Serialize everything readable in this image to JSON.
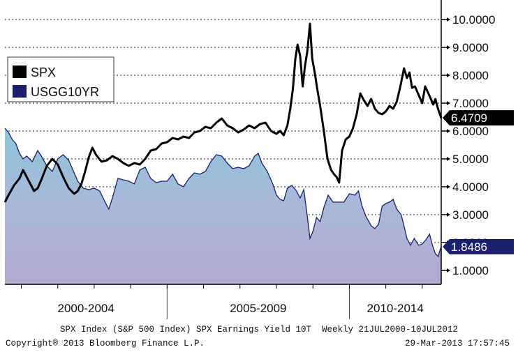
{
  "chart_data": {
    "type": "line",
    "title": "",
    "x_range": [
      2000.55,
      2012.52
    ],
    "ylim": [
      0.5,
      10.5
    ],
    "y_ticks": [
      "10.0000",
      "9.0000",
      "8.0000",
      "7.0000",
      "6.0000",
      "5.0000",
      "4.0000",
      "3.0000",
      "2.0000",
      "1.0000"
    ],
    "y_tick_values": [
      10,
      9,
      8,
      7,
      6,
      5,
      4,
      3,
      2,
      1
    ],
    "x_period_labels": [
      "2000-2004",
      "2005-2009",
      "2010-2014"
    ],
    "grid": true,
    "legend_position": "top-left",
    "series": [
      {
        "name": "SPX",
        "color": "#000000",
        "last_value_label": "6.4709",
        "last_value": 6.4709,
        "points": [
          [
            2000.55,
            3.45
          ],
          [
            2000.65,
            3.7
          ],
          [
            2000.8,
            4.05
          ],
          [
            2000.95,
            4.3
          ],
          [
            2001.05,
            4.6
          ],
          [
            2001.15,
            4.35
          ],
          [
            2001.25,
            4.1
          ],
          [
            2001.35,
            3.85
          ],
          [
            2001.45,
            3.95
          ],
          [
            2001.55,
            4.25
          ],
          [
            2001.7,
            4.75
          ],
          [
            2001.85,
            5.0
          ],
          [
            2002.0,
            4.8
          ],
          [
            2002.15,
            4.35
          ],
          [
            2002.3,
            3.95
          ],
          [
            2002.45,
            3.75
          ],
          [
            2002.55,
            3.85
          ],
          [
            2002.65,
            4.1
          ],
          [
            2002.75,
            4.55
          ],
          [
            2002.85,
            5.05
          ],
          [
            2002.95,
            5.4
          ],
          [
            2003.05,
            5.15
          ],
          [
            2003.2,
            4.9
          ],
          [
            2003.35,
            4.95
          ],
          [
            2003.5,
            5.1
          ],
          [
            2003.65,
            5.0
          ],
          [
            2003.8,
            4.85
          ],
          [
            2003.95,
            4.75
          ],
          [
            2004.1,
            4.85
          ],
          [
            2004.25,
            4.8
          ],
          [
            2004.4,
            5.0
          ],
          [
            2004.55,
            5.3
          ],
          [
            2004.7,
            5.35
          ],
          [
            2004.85,
            5.55
          ],
          [
            2005.0,
            5.6
          ],
          [
            2005.15,
            5.75
          ],
          [
            2005.3,
            5.7
          ],
          [
            2005.45,
            5.8
          ],
          [
            2005.6,
            5.75
          ],
          [
            2005.75,
            5.95
          ],
          [
            2005.9,
            6.0
          ],
          [
            2006.05,
            6.15
          ],
          [
            2006.2,
            6.1
          ],
          [
            2006.35,
            6.3
          ],
          [
            2006.5,
            6.45
          ],
          [
            2006.65,
            6.2
          ],
          [
            2006.8,
            6.1
          ],
          [
            2006.95,
            5.95
          ],
          [
            2007.1,
            6.05
          ],
          [
            2007.25,
            6.2
          ],
          [
            2007.4,
            6.1
          ],
          [
            2007.55,
            6.25
          ],
          [
            2007.7,
            6.3
          ],
          [
            2007.85,
            6.0
          ],
          [
            2008.0,
            5.9
          ],
          [
            2008.1,
            6.0
          ],
          [
            2008.2,
            5.85
          ],
          [
            2008.3,
            6.2
          ],
          [
            2008.38,
            6.8
          ],
          [
            2008.45,
            7.5
          ],
          [
            2008.52,
            8.6
          ],
          [
            2008.58,
            9.1
          ],
          [
            2008.65,
            8.7
          ],
          [
            2008.72,
            7.6
          ],
          [
            2008.78,
            8.3
          ],
          [
            2008.85,
            8.9
          ],
          [
            2008.92,
            9.85
          ],
          [
            2008.98,
            8.6
          ],
          [
            2009.05,
            8.1
          ],
          [
            2009.12,
            7.5
          ],
          [
            2009.2,
            6.9
          ],
          [
            2009.3,
            6.0
          ],
          [
            2009.4,
            5.0
          ],
          [
            2009.5,
            4.6
          ],
          [
            2009.58,
            4.45
          ],
          [
            2009.65,
            4.35
          ],
          [
            2009.72,
            4.15
          ],
          [
            2009.8,
            5.3
          ],
          [
            2009.9,
            5.7
          ],
          [
            2010.0,
            5.8
          ],
          [
            2010.1,
            6.1
          ],
          [
            2010.2,
            6.6
          ],
          [
            2010.3,
            7.35
          ],
          [
            2010.4,
            7.1
          ],
          [
            2010.5,
            6.9
          ],
          [
            2010.6,
            7.15
          ],
          [
            2010.7,
            6.8
          ],
          [
            2010.8,
            6.65
          ],
          [
            2010.9,
            6.6
          ],
          [
            2011.0,
            6.7
          ],
          [
            2011.1,
            6.9
          ],
          [
            2011.2,
            6.8
          ],
          [
            2011.3,
            7.05
          ],
          [
            2011.4,
            7.6
          ],
          [
            2011.5,
            8.25
          ],
          [
            2011.58,
            7.9
          ],
          [
            2011.65,
            8.1
          ],
          [
            2011.72,
            7.55
          ],
          [
            2011.8,
            7.6
          ],
          [
            2011.9,
            7.3
          ],
          [
            2012.0,
            7.0
          ],
          [
            2012.08,
            7.6
          ],
          [
            2012.15,
            7.4
          ],
          [
            2012.22,
            7.2
          ],
          [
            2012.3,
            6.95
          ],
          [
            2012.36,
            7.15
          ],
          [
            2012.42,
            6.85
          ],
          [
            2012.47,
            6.65
          ],
          [
            2012.52,
            6.47
          ]
        ]
      },
      {
        "name": "USGG10YR",
        "color": "#1c1e6e",
        "last_value_label": "1.8486",
        "last_value": 1.8486,
        "points": [
          [
            2000.55,
            6.1
          ],
          [
            2000.65,
            5.95
          ],
          [
            2000.75,
            5.7
          ],
          [
            2000.85,
            5.55
          ],
          [
            2000.95,
            5.2
          ],
          [
            2001.05,
            5.0
          ],
          [
            2001.15,
            5.1
          ],
          [
            2001.3,
            4.9
          ],
          [
            2001.45,
            5.3
          ],
          [
            2001.55,
            5.1
          ],
          [
            2001.7,
            4.75
          ],
          [
            2001.85,
            4.55
          ],
          [
            2002.0,
            5.0
          ],
          [
            2002.15,
            5.15
          ],
          [
            2002.3,
            4.95
          ],
          [
            2002.45,
            4.5
          ],
          [
            2002.55,
            4.2
          ],
          [
            2002.7,
            3.95
          ],
          [
            2002.85,
            3.9
          ],
          [
            2003.0,
            3.95
          ],
          [
            2003.15,
            3.85
          ],
          [
            2003.3,
            3.45
          ],
          [
            2003.4,
            3.2
          ],
          [
            2003.5,
            3.6
          ],
          [
            2003.65,
            4.3
          ],
          [
            2003.8,
            4.25
          ],
          [
            2003.95,
            4.2
          ],
          [
            2004.1,
            4.1
          ],
          [
            2004.25,
            4.6
          ],
          [
            2004.4,
            4.7
          ],
          [
            2004.55,
            4.3
          ],
          [
            2004.7,
            4.15
          ],
          [
            2004.85,
            4.2
          ],
          [
            2005.0,
            4.2
          ],
          [
            2005.15,
            4.45
          ],
          [
            2005.3,
            4.1
          ],
          [
            2005.45,
            4.0
          ],
          [
            2005.6,
            4.3
          ],
          [
            2005.75,
            4.5
          ],
          [
            2005.9,
            4.45
          ],
          [
            2006.05,
            4.55
          ],
          [
            2006.2,
            4.9
          ],
          [
            2006.35,
            5.15
          ],
          [
            2006.5,
            5.1
          ],
          [
            2006.65,
            4.85
          ],
          [
            2006.8,
            4.65
          ],
          [
            2006.95,
            4.7
          ],
          [
            2007.1,
            4.65
          ],
          [
            2007.25,
            4.75
          ],
          [
            2007.4,
            5.1
          ],
          [
            2007.5,
            5.2
          ],
          [
            2007.6,
            4.85
          ],
          [
            2007.75,
            4.55
          ],
          [
            2007.9,
            4.1
          ],
          [
            2008.0,
            3.7
          ],
          [
            2008.1,
            3.55
          ],
          [
            2008.2,
            3.5
          ],
          [
            2008.3,
            3.95
          ],
          [
            2008.42,
            4.05
          ],
          [
            2008.55,
            3.85
          ],
          [
            2008.65,
            3.6
          ],
          [
            2008.75,
            3.9
          ],
          [
            2008.85,
            2.9
          ],
          [
            2008.92,
            2.15
          ],
          [
            2009.0,
            2.4
          ],
          [
            2009.1,
            2.9
          ],
          [
            2009.2,
            2.75
          ],
          [
            2009.3,
            3.25
          ],
          [
            2009.42,
            3.7
          ],
          [
            2009.55,
            3.45
          ],
          [
            2009.7,
            3.45
          ],
          [
            2009.85,
            3.45
          ],
          [
            2010.0,
            3.75
          ],
          [
            2010.15,
            3.7
          ],
          [
            2010.25,
            3.85
          ],
          [
            2010.35,
            3.3
          ],
          [
            2010.45,
            2.95
          ],
          [
            2010.6,
            2.6
          ],
          [
            2010.7,
            2.5
          ],
          [
            2010.8,
            2.65
          ],
          [
            2010.9,
            3.3
          ],
          [
            2011.0,
            3.4
          ],
          [
            2011.1,
            3.45
          ],
          [
            2011.2,
            3.55
          ],
          [
            2011.3,
            3.2
          ],
          [
            2011.42,
            3.0
          ],
          [
            2011.5,
            2.6
          ],
          [
            2011.58,
            2.15
          ],
          [
            2011.68,
            1.9
          ],
          [
            2011.78,
            2.15
          ],
          [
            2011.9,
            1.9
          ],
          [
            2012.0,
            1.95
          ],
          [
            2012.1,
            2.1
          ],
          [
            2012.2,
            2.3
          ],
          [
            2012.28,
            1.9
          ],
          [
            2012.36,
            1.6
          ],
          [
            2012.44,
            1.5
          ],
          [
            2012.48,
            1.7
          ],
          [
            2012.52,
            1.85
          ]
        ]
      }
    ]
  },
  "footer": {
    "caption": "SPX Index (S&P 500 Index) SPX Earnings Yield 10T  Weekly 21JUL2000-10JUL2012",
    "copyright": "Copyright® 2013 Bloomberg Finance L.P.",
    "timestamp": "29-Mar-2013 17:57:45"
  }
}
